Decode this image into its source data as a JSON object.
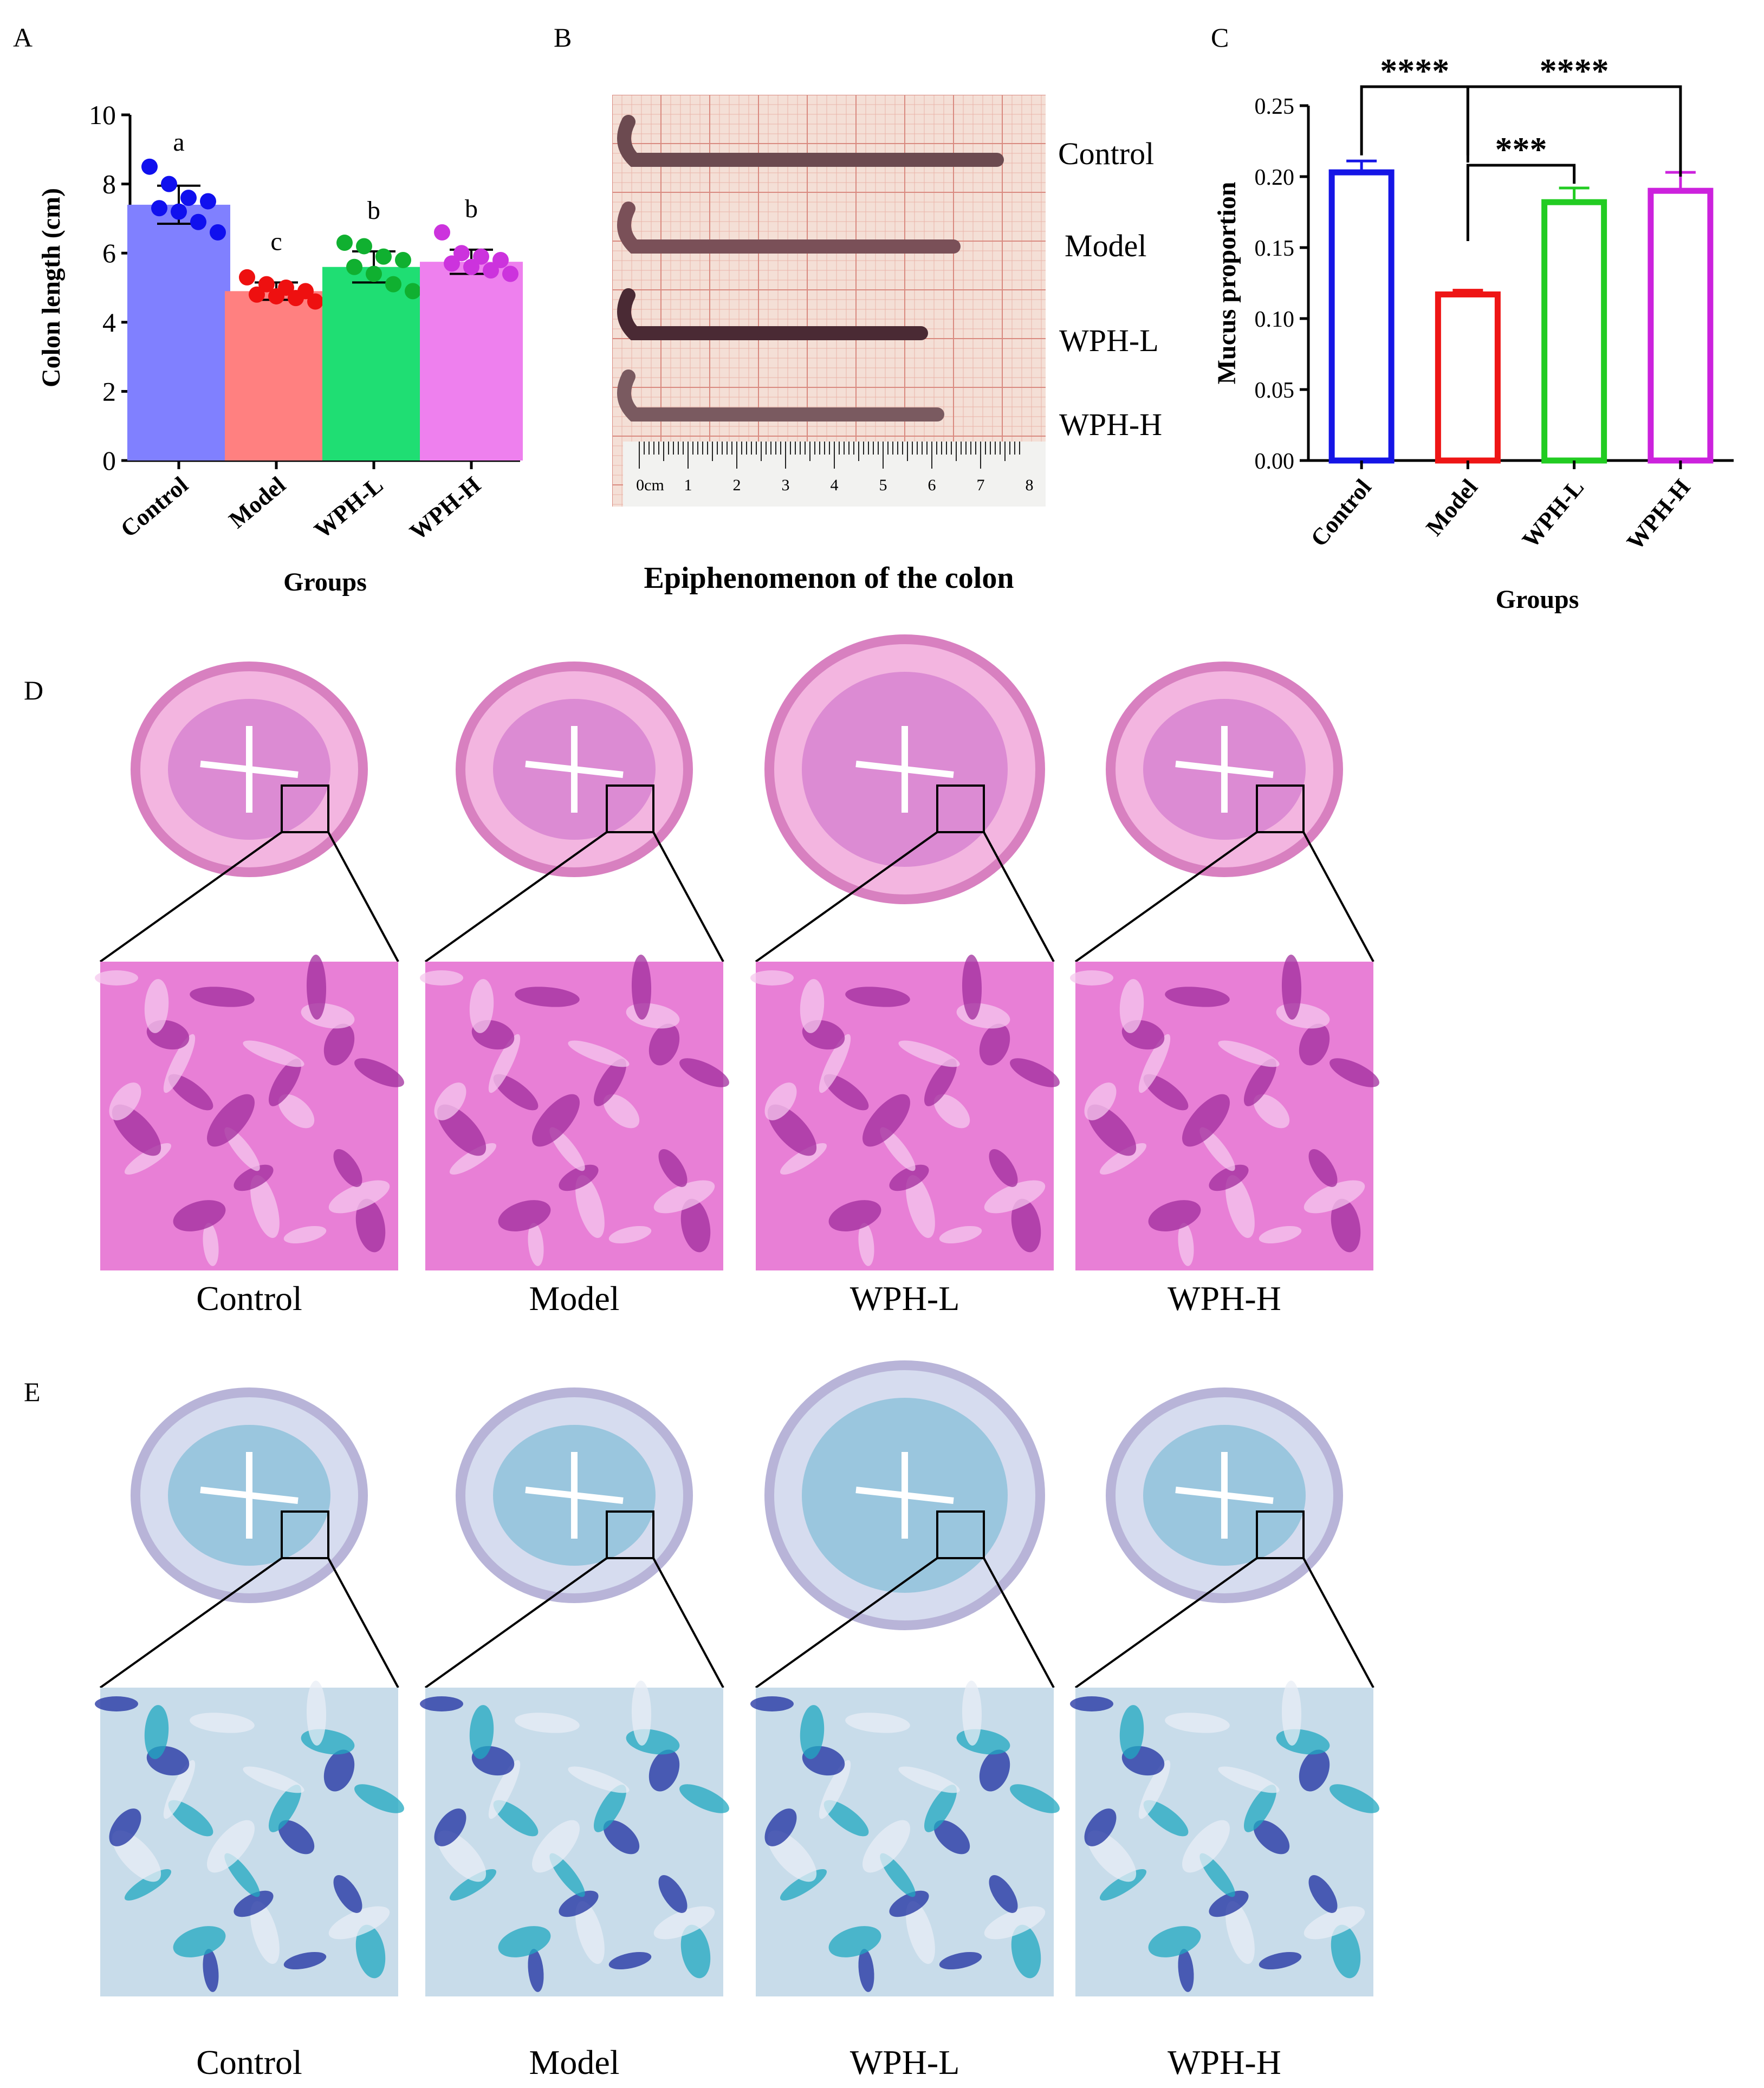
{
  "panels": {
    "A": "A",
    "B": "B",
    "C": "C",
    "D": "D",
    "E": "E"
  },
  "chart_data": [
    {
      "type": "bar",
      "panel": "A",
      "categories": [
        "Control",
        "Model",
        "WPH-L",
        "WPH-H"
      ],
      "values": [
        7.4,
        4.9,
        5.6,
        5.75
      ],
      "error": [
        0.55,
        0.25,
        0.45,
        0.35
      ],
      "points": [
        [
          8.5,
          8.0,
          7.6,
          7.5,
          7.3,
          7.2,
          6.9,
          6.6
        ],
        [
          5.3,
          5.1,
          5.0,
          4.9,
          4.8,
          4.75,
          4.7,
          4.6
        ],
        [
          6.3,
          6.2,
          5.9,
          5.8,
          5.6,
          5.4,
          5.1,
          4.9
        ],
        [
          6.6,
          6.0,
          5.9,
          5.8,
          5.7,
          5.6,
          5.5,
          5.4
        ]
      ],
      "sig_letters": [
        "a",
        "c",
        "b",
        "b"
      ],
      "colors": [
        "#8080ff",
        "#ff8080",
        "#1fde73",
        "#ee80ee"
      ],
      "point_colors": [
        "#1010ee",
        "#ee1010",
        "#10b030",
        "#cc33dd"
      ],
      "xlabel": "Groups",
      "ylabel": "Colon length (cm)",
      "ylim": [
        0,
        10
      ],
      "yticks": [
        "0",
        "2",
        "4",
        "6",
        "8",
        "10"
      ]
    },
    {
      "type": "bar",
      "panel": "C",
      "categories": [
        "Control",
        "Model",
        "WPH-L",
        "WPH-H"
      ],
      "values": [
        0.203,
        0.117,
        0.182,
        0.19
      ],
      "error": [
        0.008,
        0.003,
        0.01,
        0.013
      ],
      "colors": [
        "#1515e6",
        "#ee1515",
        "#22cc22",
        "#cc22dd"
      ],
      "xlabel": "Groups",
      "ylabel": "Mucus proportion",
      "ylim": [
        0,
        0.25
      ],
      "yticks": [
        "0.00",
        "0.05",
        "0.10",
        "0.15",
        "0.20",
        "0.25"
      ],
      "significance": [
        {
          "from": "Control",
          "to": "Model",
          "label": "****"
        },
        {
          "from": "Model",
          "to": "WPH-H",
          "label": "****"
        },
        {
          "from": "Model",
          "to": "WPH-L",
          "label": "***"
        }
      ]
    }
  ],
  "panelB": {
    "caption": "Epiphenomenon of the colon",
    "labels": [
      "Control",
      "Model",
      "WPH-L",
      "WPH-H"
    ],
    "ruler": [
      "0cm",
      "1",
      "2",
      "3",
      "4",
      "5",
      "6",
      "7",
      "8"
    ]
  },
  "panelD": {
    "labels": [
      "Control",
      "Model",
      "WPH-L",
      "WPH-H"
    ]
  },
  "panelE": {
    "labels": [
      "Control",
      "Model",
      "WPH-L",
      "WPH-H"
    ]
  }
}
